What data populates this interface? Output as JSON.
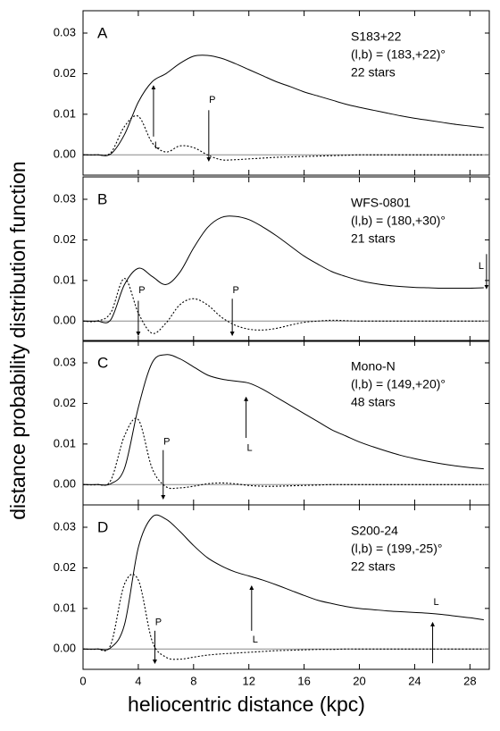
{
  "xlabel": "heliocentric distance (kpc)",
  "ylabel": "distance probability distribution function",
  "chart_data": [
    {
      "type": "line",
      "panel": "A",
      "name": "S183+22",
      "coords": "(l,b) = (183,+22)°",
      "stars": "22 stars",
      "xlim": [
        0,
        29.4
      ],
      "xticks": [
        0,
        4,
        8,
        12,
        16,
        20,
        24,
        28
      ],
      "ylim": [
        -0.005,
        0.0355
      ],
      "yticks": [
        {
          "value": 0,
          "label": "0.00"
        },
        0.01,
        0.02,
        0.03
      ],
      "x": [
        0,
        1,
        2,
        3,
        4,
        5,
        6,
        7,
        8,
        9,
        10,
        11,
        12,
        13,
        14,
        15,
        16,
        17,
        18,
        19,
        20,
        21,
        22,
        23,
        24,
        25,
        26,
        27,
        28,
        29
      ],
      "series": [
        {
          "color": "#000000",
          "style": "solid",
          "values": [
            0,
            0,
            0.0002,
            0.005,
            0.013,
            0.018,
            0.02,
            0.0225,
            0.0243,
            0.0245,
            0.0238,
            0.0225,
            0.021,
            0.0195,
            0.018,
            0.0168,
            0.0155,
            0.0145,
            0.0135,
            0.0125,
            0.0117,
            0.011,
            0.0103,
            0.0096,
            0.009,
            0.0085,
            0.008,
            0.0075,
            0.0071,
            0.0067
          ]
        },
        {
          "color": "#000000",
          "style": "dotted",
          "values": [
            0,
            0,
            0.0005,
            0.007,
            0.0095,
            0.003,
            0.0007,
            0.0022,
            0.0018,
            0,
            -0.0012,
            -0.0012,
            -0.001,
            -0.0008,
            -0.0006,
            -0.0005,
            -0.0004,
            -0.0003,
            -0.0002,
            -0.0001,
            0,
            0,
            0,
            0,
            0,
            0,
            0,
            0,
            0,
            0
          ]
        }
      ],
      "arrows": [
        {
          "text": "L",
          "x": 5.1,
          "y_from": 0.0045,
          "y_to": 0.017,
          "text_y": 0.0022
        },
        {
          "text": "P",
          "x": 9.1,
          "y_from": 0.011,
          "y_to": -0.0015,
          "text_y": 0.0135
        }
      ]
    },
    {
      "type": "line",
      "panel": "B",
      "name": "WFS-0801",
      "coords": "(l,b) = (180,+30)°",
      "stars": "21 stars",
      "xlim": [
        0,
        29.4
      ],
      "xticks": [
        0,
        4,
        8,
        12,
        16,
        20,
        24,
        28
      ],
      "ylim": [
        -0.005,
        0.0355
      ],
      "yticks": [
        {
          "value": 0,
          "label": "0.00"
        },
        0.01,
        0.02,
        0.03
      ],
      "x": [
        0,
        1,
        2,
        3,
        4,
        5,
        6,
        7,
        8,
        9,
        10,
        11,
        12,
        13,
        14,
        15,
        16,
        17,
        18,
        19,
        20,
        21,
        22,
        23,
        24,
        25,
        26,
        27,
        28,
        29
      ],
      "series": [
        {
          "color": "#000000",
          "style": "solid",
          "values": [
            0,
            0,
            0.0003,
            0.009,
            0.013,
            0.011,
            0.009,
            0.012,
            0.018,
            0.023,
            0.0255,
            0.0258,
            0.025,
            0.0232,
            0.021,
            0.0185,
            0.016,
            0.014,
            0.0122,
            0.011,
            0.01,
            0.0093,
            0.0088,
            0.0085,
            0.0083,
            0.0082,
            0.0081,
            0.0081,
            0.0081,
            0.0082
          ]
        },
        {
          "color": "#000000",
          "style": "dotted",
          "values": [
            0,
            0,
            0.002,
            0.0105,
            0.002,
            -0.003,
            -0.0005,
            0.004,
            0.0055,
            0.004,
            0.001,
            -0.001,
            -0.002,
            -0.0022,
            -0.0018,
            -0.001,
            -0.0003,
            0,
            0.0002,
            0.0001,
            0,
            0,
            0,
            0,
            0,
            0,
            0,
            0,
            0,
            0
          ]
        }
      ],
      "arrows": [
        {
          "text": "P",
          "x": 4.0,
          "y_from": 0.005,
          "y_to": -0.0035,
          "text_y": 0.0075
        },
        {
          "text": "P",
          "x": 10.8,
          "y_from": 0.0055,
          "y_to": -0.0035,
          "text_y": 0.0075
        },
        {
          "text": "L",
          "x": 29.2,
          "y_from": 0.0165,
          "y_to": 0.008,
          "text_y": 0.0135
        }
      ]
    },
    {
      "type": "line",
      "panel": "C",
      "name": "Mono-N",
      "coords": "(l,b) = (149,+20)°",
      "stars": "48 stars",
      "xlim": [
        0,
        29.4
      ],
      "xticks": [
        0,
        4,
        8,
        12,
        16,
        20,
        24,
        28
      ],
      "ylim": [
        -0.005,
        0.0355
      ],
      "yticks": [
        {
          "value": 0,
          "label": "0.00"
        },
        0.01,
        0.02,
        0.03
      ],
      "x": [
        0,
        1,
        2,
        3,
        4,
        5,
        6,
        7,
        8,
        9,
        10,
        11,
        12,
        13,
        14,
        15,
        16,
        17,
        18,
        19,
        20,
        21,
        22,
        23,
        24,
        25,
        26,
        27,
        28,
        29
      ],
      "series": [
        {
          "color": "#000000",
          "style": "solid",
          "values": [
            0,
            0,
            0.0002,
            0.004,
            0.019,
            0.03,
            0.032,
            0.031,
            0.029,
            0.027,
            0.026,
            0.0255,
            0.025,
            0.0235,
            0.0215,
            0.0195,
            0.0175,
            0.0155,
            0.0135,
            0.012,
            0.0105,
            0.0093,
            0.0082,
            0.0072,
            0.0064,
            0.0057,
            0.0051,
            0.0046,
            0.0042,
            0.0039
          ]
        },
        {
          "color": "#000000",
          "style": "dotted",
          "values": [
            0,
            0,
            0.001,
            0.012,
            0.016,
            0.004,
            -0.0005,
            -0.0008,
            -0.0004,
            0.0002,
            0.0004,
            0.0002,
            -0.0002,
            -0.0004,
            -0.0004,
            -0.0003,
            -0.0002,
            -0.0001,
            0,
            0,
            0,
            0,
            0,
            0,
            0,
            0,
            0,
            0,
            0,
            0
          ]
        }
      ],
      "arrows": [
        {
          "text": "P",
          "x": 5.8,
          "y_from": 0.0085,
          "y_to": -0.0035,
          "text_y": 0.0105
        },
        {
          "text": "L",
          "x": 11.8,
          "y_from": 0.0115,
          "y_to": 0.0215,
          "text_y": 0.009
        }
      ]
    },
    {
      "type": "line",
      "panel": "D",
      "name": "S200-24",
      "coords": "(l,b) = (199,-25)°",
      "stars": "22 stars",
      "xlim": [
        0,
        29.4
      ],
      "xticks": [
        0,
        4,
        8,
        12,
        16,
        20,
        24,
        28
      ],
      "ylim": [
        -0.005,
        0.0355
      ],
      "yticks": [
        {
          "value": 0,
          "label": "0.00"
        },
        0.01,
        0.02,
        0.03
      ],
      "x": [
        0,
        1,
        2,
        3,
        4,
        5,
        6,
        7,
        8,
        9,
        10,
        11,
        12,
        13,
        14,
        15,
        16,
        17,
        18,
        19,
        20,
        21,
        22,
        23,
        24,
        25,
        26,
        27,
        28,
        29
      ],
      "series": [
        {
          "color": "#000000",
          "style": "solid",
          "values": [
            0,
            0,
            0.0003,
            0.006,
            0.025,
            0.0325,
            0.032,
            0.029,
            0.0255,
            0.0225,
            0.0205,
            0.019,
            0.018,
            0.017,
            0.0158,
            0.0145,
            0.0132,
            0.012,
            0.0112,
            0.0105,
            0.01,
            0.0097,
            0.0094,
            0.0092,
            0.009,
            0.0088,
            0.0085,
            0.0081,
            0.0077,
            0.0072
          ]
        },
        {
          "color": "#000000",
          "style": "dotted",
          "values": [
            0,
            0,
            0.001,
            0.016,
            0.017,
            0.002,
            -0.002,
            -0.0025,
            -0.002,
            -0.0015,
            -0.0012,
            -0.001,
            -0.0008,
            -0.0006,
            -0.0004,
            -0.0003,
            -0.0002,
            -0.0001,
            -0.0001,
            0,
            0,
            0,
            0,
            0,
            0,
            0,
            0,
            0,
            0,
            0
          ]
        }
      ],
      "arrows": [
        {
          "text": "P",
          "x": 5.2,
          "y_from": 0.0045,
          "y_to": -0.0035,
          "text_y": 0.0065
        },
        {
          "text": "L",
          "x": 12.2,
          "y_from": 0.0045,
          "y_to": 0.0155,
          "text_y": 0.0022
        },
        {
          "text": "L",
          "x": 25.3,
          "y_from": -0.0035,
          "y_to": 0.0065,
          "text_y": 0.0115
        }
      ]
    }
  ]
}
